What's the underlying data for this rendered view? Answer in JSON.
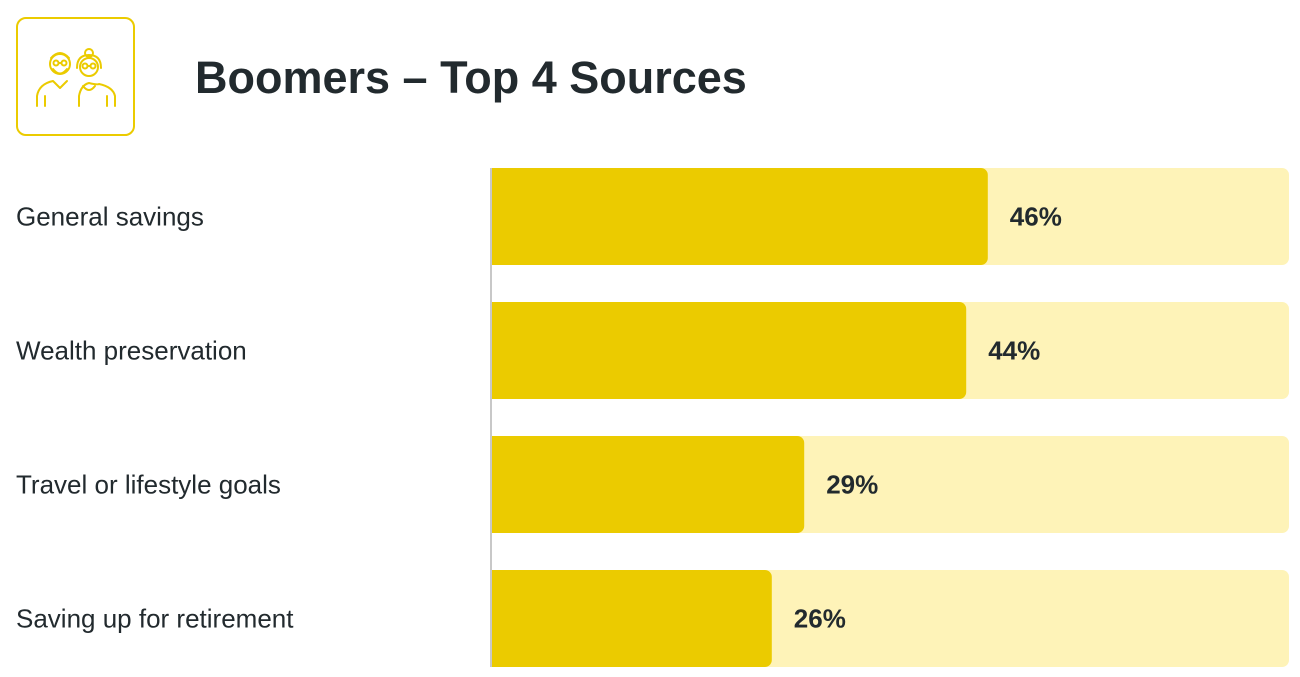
{
  "header": {
    "title": "Boomers – Top 4 Sources",
    "icon": "elderly-couple-icon"
  },
  "colors": {
    "accent": "#ebcb00",
    "bar_fill": "#ebcb00",
    "bar_track": "#fef3b8",
    "axis": "#c8c8c8",
    "text": "#222a2e"
  },
  "chart_data": {
    "type": "bar",
    "orientation": "horizontal",
    "title": "Boomers – Top 4 Sources",
    "categories": [
      "General savings",
      "Wealth preservation",
      "Travel or lifestyle goals",
      "Saving up for retirement"
    ],
    "values": [
      46,
      44,
      29,
      26
    ],
    "value_labels": [
      "46%",
      "44%",
      "29%",
      "26%"
    ],
    "unit": "%",
    "xlabel": "",
    "ylabel": "",
    "grid": false,
    "legend": "none"
  }
}
